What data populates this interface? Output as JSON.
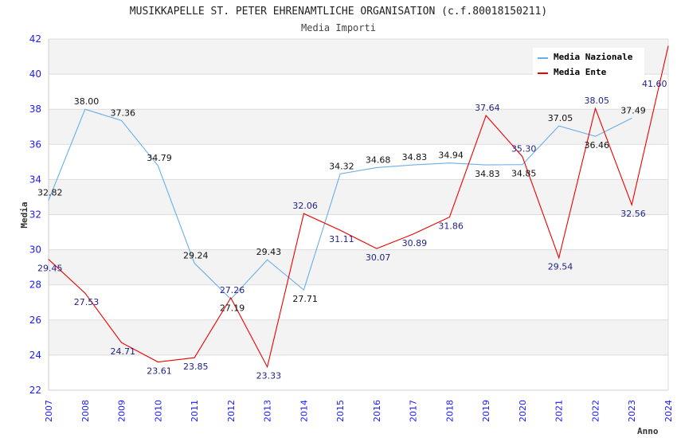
{
  "chart_data": {
    "type": "line",
    "title": "MUSIKKAPELLE ST. PETER EHRENAMTLICHE ORGANISATION (c.f.80018150211)",
    "subtitle": "Media Importi",
    "xlabel": "Anno",
    "ylabel": "Media",
    "ylim": [
      22,
      42
    ],
    "yticks": [
      22,
      24,
      26,
      28,
      30,
      32,
      34,
      36,
      38,
      40,
      42
    ],
    "grid": true,
    "legend_position": "top-right",
    "x": [
      "2007",
      "2008",
      "2009",
      "2010",
      "2011",
      "2012",
      "2013",
      "2014",
      "2015",
      "2016",
      "2017",
      "2018",
      "2019",
      "2020",
      "2021",
      "2022",
      "2023",
      "2024"
    ],
    "series": [
      {
        "name": "Media Nazionale",
        "color": "#6aaee8",
        "label_color": "#111111",
        "values": [
          32.82,
          38.0,
          37.36,
          34.79,
          29.24,
          27.19,
          29.43,
          27.71,
          34.32,
          34.68,
          34.83,
          34.94,
          34.83,
          34.85,
          37.05,
          36.46,
          37.49,
          null
        ]
      },
      {
        "name": "Media Ente",
        "color": "#ee0000",
        "label_color": "#22228a",
        "values": [
          29.45,
          27.53,
          24.71,
          23.61,
          23.85,
          27.26,
          23.33,
          32.06,
          31.11,
          30.07,
          30.89,
          31.86,
          37.64,
          35.3,
          29.54,
          38.05,
          32.56,
          41.6
        ]
      }
    ]
  }
}
